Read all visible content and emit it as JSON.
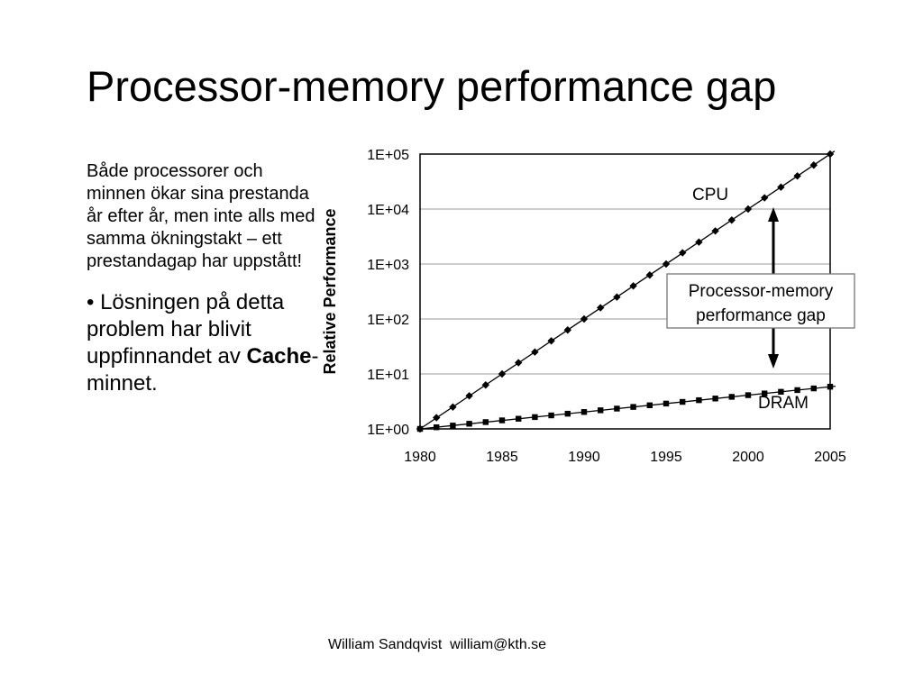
{
  "slide": {
    "title": "Processor-memory performance gap",
    "paragraph1": "Både processorer och minnen ökar sina prestanda år efter år, men inte alls med samma ökningstakt – ett prestandagap har uppstått!",
    "paragraph2_prefix": "• Lösningen på detta problem har blivit uppfinnandet av ",
    "paragraph2_bold": "Cache",
    "paragraph2_suffix": "-minnet.",
    "footer": "William Sandqvist  william@kth.se"
  },
  "chart_data": {
    "type": "line",
    "ylabel": "Relative Performance",
    "xlabel": "",
    "y_scale": "log",
    "x_ticks": [
      "1980",
      "1985",
      "1990",
      "1995",
      "2000",
      "2005"
    ],
    "y_ticks": [
      "1E+00",
      "1E+01",
      "1E+02",
      "1E+03",
      "1E+04",
      "1E+05"
    ],
    "xlim": [
      1980,
      2005
    ],
    "ylim": [
      1,
      100000
    ],
    "grid": "horizontal",
    "annotation": "Processor-memory performance gap",
    "series": [
      {
        "name": "CPU",
        "marker": "diamond",
        "x": [
          1980,
          1981,
          1982,
          1983,
          1984,
          1985,
          1986,
          1987,
          1988,
          1989,
          1990,
          1991,
          1992,
          1993,
          1994,
          1995,
          1996,
          1997,
          1998,
          1999,
          2000,
          2001,
          2002,
          2003,
          2004,
          2005
        ],
        "values": [
          1,
          1.6,
          2.5,
          4,
          6.3,
          10,
          16,
          25,
          40,
          63,
          100,
          160,
          250,
          400,
          630,
          1000,
          1600,
          2500,
          4000,
          6300,
          10000,
          16000,
          25000,
          40000,
          63000,
          100000
        ]
      },
      {
        "name": "DRAM",
        "marker": "square",
        "x": [
          1980,
          1981,
          1982,
          1983,
          1984,
          1985,
          1986,
          1987,
          1988,
          1989,
          1990,
          1991,
          1992,
          1993,
          1994,
          1995,
          1996,
          1997,
          1998,
          1999,
          2000,
          2001,
          2002,
          2003,
          2004,
          2005
        ],
        "values": [
          1,
          1.07,
          1.15,
          1.24,
          1.33,
          1.43,
          1.53,
          1.64,
          1.76,
          1.89,
          2.03,
          2.18,
          2.34,
          2.51,
          2.69,
          2.89,
          3.1,
          3.33,
          3.57,
          3.83,
          4.11,
          4.41,
          4.73,
          5.08,
          5.45,
          5.85
        ]
      }
    ]
  }
}
